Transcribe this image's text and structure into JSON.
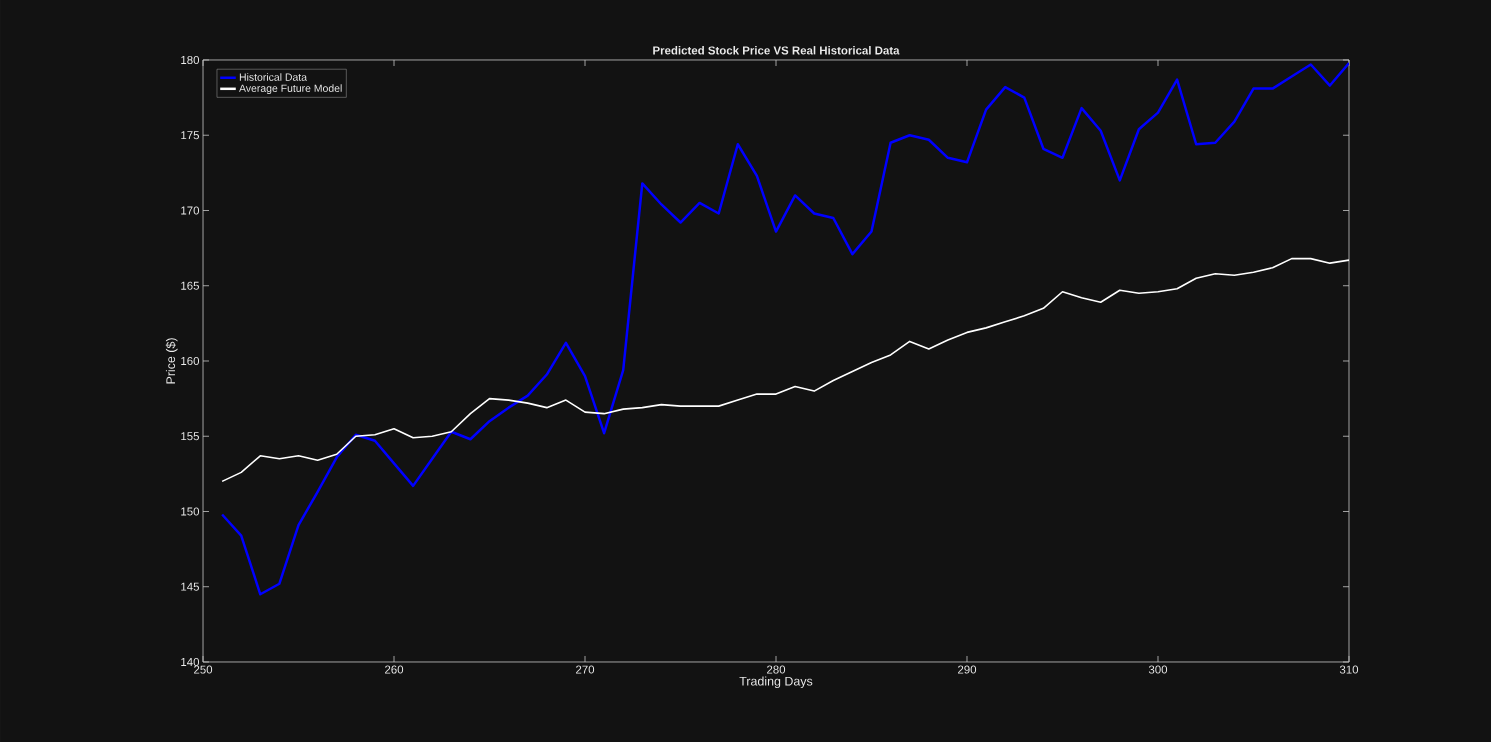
{
  "chart_data": {
    "type": "line",
    "title": "Predicted Stock Price VS Real Historical Data",
    "xlabel": "Trading Days",
    "ylabel": "Price ($)",
    "x": [
      251,
      252,
      253,
      254,
      255,
      256,
      257,
      258,
      259,
      260,
      261,
      262,
      263,
      264,
      265,
      266,
      267,
      268,
      269,
      270,
      271,
      272,
      273,
      274,
      275,
      276,
      277,
      278,
      279,
      280,
      281,
      282,
      283,
      284,
      285,
      286,
      287,
      288,
      289,
      290,
      291,
      292,
      293,
      294,
      295,
      296,
      297,
      298,
      299,
      300,
      301,
      302,
      303,
      304,
      305,
      306,
      307,
      308,
      309,
      310
    ],
    "series": [
      {
        "name": "Historical Data",
        "color": "#0000ff",
        "values": [
          149.8,
          148.4,
          144.5,
          145.2,
          149.1,
          151.3,
          153.6,
          155.1,
          154.7,
          153.2,
          151.7,
          153.5,
          155.3,
          154.8,
          156.0,
          156.9,
          157.7,
          159.1,
          161.2,
          159.0,
          155.2,
          159.4,
          171.8,
          170.4,
          169.2,
          170.5,
          169.8,
          174.4,
          172.3,
          168.6,
          171.0,
          169.8,
          169.5,
          167.1,
          168.6,
          174.5,
          175.0,
          174.7,
          173.5,
          173.2,
          176.7,
          178.2,
          177.5,
          174.1,
          173.5,
          176.8,
          175.3,
          172.0,
          175.4,
          176.5,
          178.7,
          174.4,
          174.5,
          175.9,
          178.1,
          178.1,
          178.9,
          179.7,
          178.3,
          179.8
        ]
      },
      {
        "name": "Average Future Model",
        "color": "#ffffff",
        "values": [
          152.0,
          152.6,
          153.7,
          153.5,
          153.7,
          153.4,
          153.8,
          155.0,
          155.1,
          155.5,
          154.9,
          155.0,
          155.3,
          156.5,
          157.5,
          157.4,
          157.2,
          156.9,
          157.4,
          156.6,
          156.5,
          156.8,
          156.9,
          157.1,
          157.0,
          157.0,
          157.0,
          157.4,
          157.8,
          157.8,
          158.3,
          158.0,
          158.7,
          159.3,
          159.9,
          160.4,
          161.3,
          160.8,
          161.4,
          161.9,
          162.2,
          162.6,
          163.0,
          163.5,
          164.6,
          164.2,
          163.9,
          164.7,
          164.5,
          164.6,
          164.8,
          165.5,
          165.8,
          165.7,
          165.9,
          166.2,
          166.8,
          166.8,
          166.5,
          166.7
        ]
      }
    ],
    "xlim": [
      250,
      310
    ],
    "xticks": [
      250,
      260,
      270,
      280,
      290,
      300,
      310
    ],
    "ylim": [
      140,
      180
    ],
    "yticks": [
      140,
      145,
      150,
      155,
      160,
      165,
      170,
      175,
      180
    ],
    "grid": false,
    "legend": "top left",
    "marker": "none",
    "line_style": "solid"
  }
}
